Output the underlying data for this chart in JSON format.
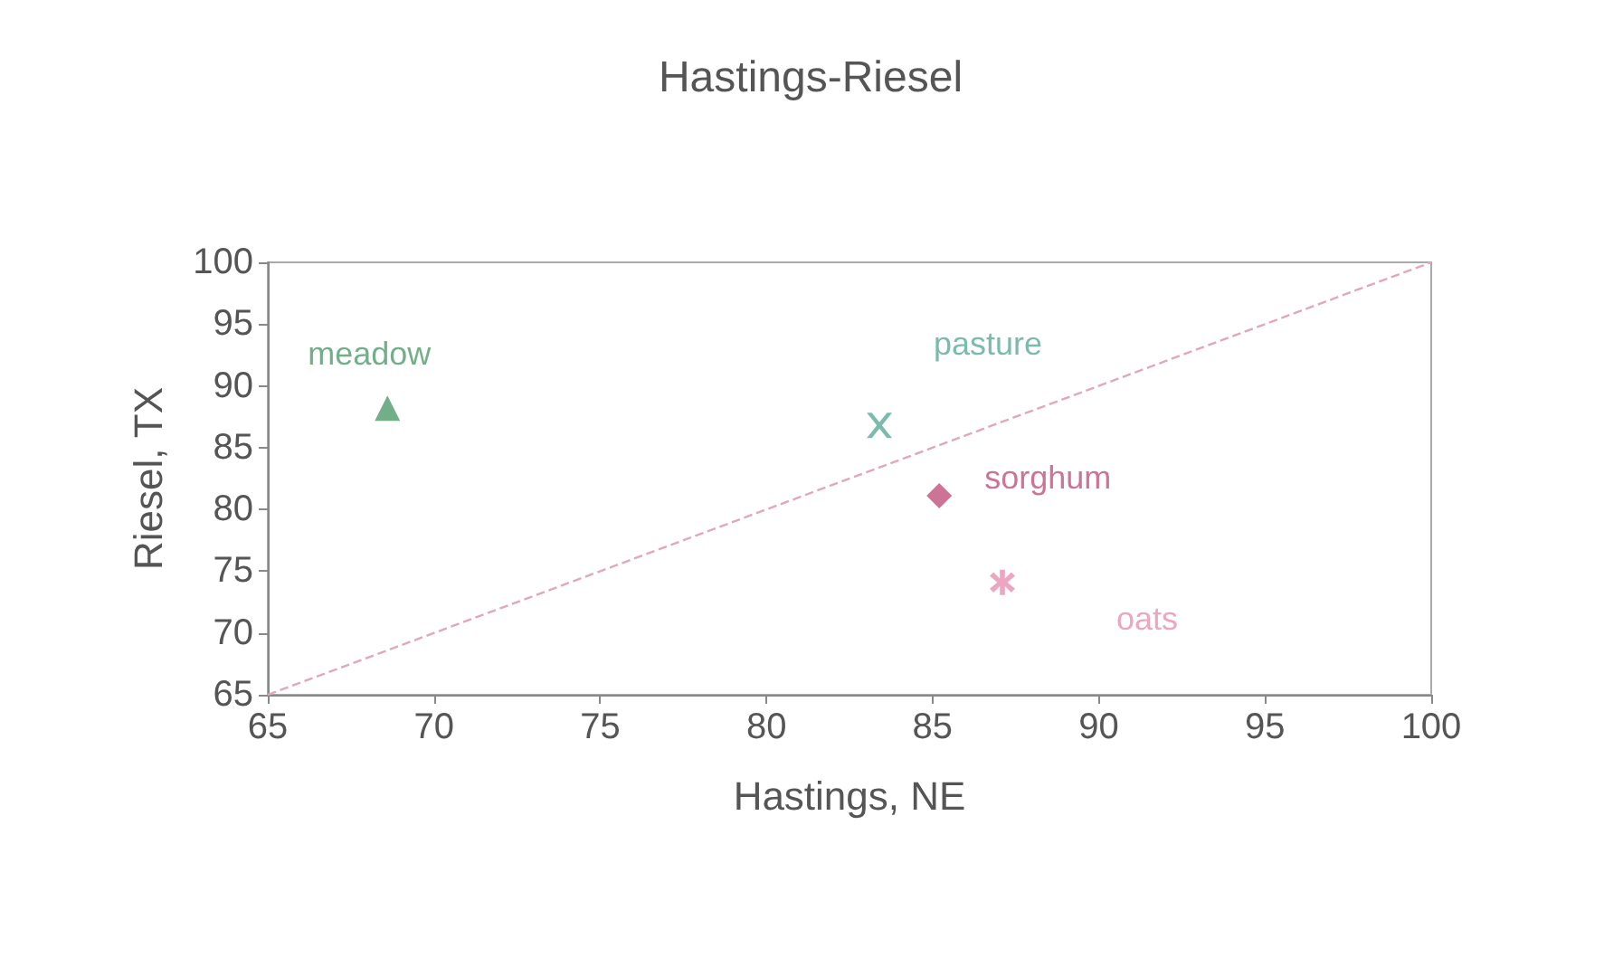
{
  "chart_data": {
    "type": "scatter",
    "title": "Hastings-Riesel",
    "xlabel": "Hastings, NE",
    "ylabel": "Riesel, TX",
    "xlim": [
      65,
      100
    ],
    "xticks": [
      65,
      70,
      75,
      80,
      85,
      90,
      95,
      100
    ],
    "ylim": [
      65,
      100
    ],
    "yticks": [
      65,
      70,
      75,
      80,
      85,
      90,
      95,
      100
    ],
    "grid": false,
    "legend": false,
    "series": [
      {
        "name": "meadow",
        "color": "#4f9a6a",
        "marker": "triangle",
        "x": [
          68.6
        ],
        "values": [
          88.2
        ]
      },
      {
        "name": "pasture",
        "color": "#5aaa9a",
        "marker": "cross",
        "x": [
          83.4
        ],
        "values": [
          86.8
        ]
      },
      {
        "name": "sorghum",
        "color": "#c0507a",
        "marker": "diamond",
        "x": [
          85.2
        ],
        "values": [
          81.1
        ]
      },
      {
        "name": "oats",
        "color": "#e890b0",
        "marker": "star",
        "x": [
          87.1
        ],
        "values": [
          74.1
        ]
      },
      {
        "type": "line",
        "color": "#e0a8b8",
        "line_style": "dashed",
        "marker": "none",
        "x": [
          65,
          100
        ],
        "values": [
          65,
          100
        ]
      }
    ]
  }
}
